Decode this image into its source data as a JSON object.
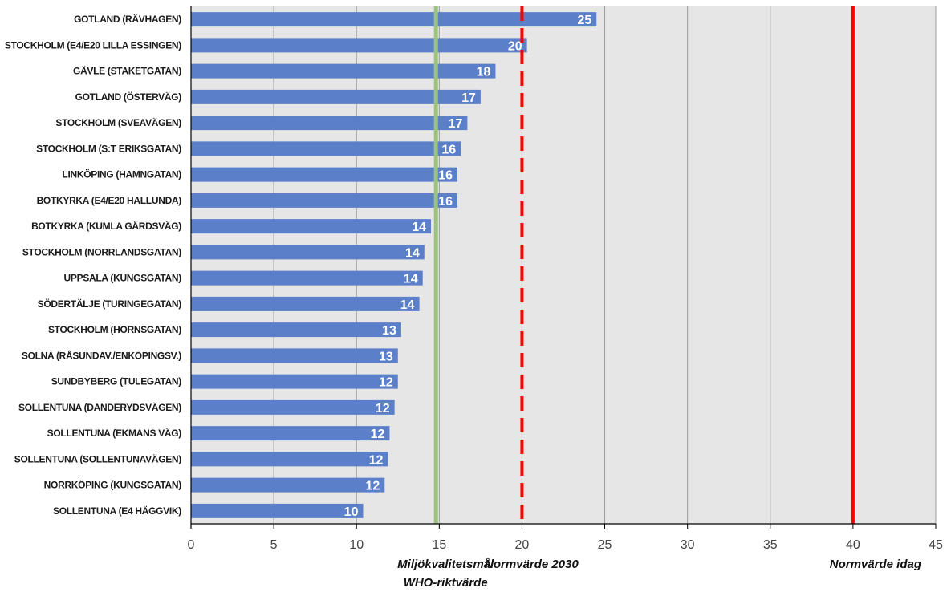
{
  "chart_data": {
    "type": "bar",
    "orientation": "horizontal",
    "categories": [
      "GOTLAND (RÄVHAGEN)",
      "STOCKHOLM (E4/E20 LILLA ESSINGEN)",
      "GÄVLE (STAKETGATAN)",
      "GOTLAND (ÖSTERVÄG)",
      "STOCKHOLM (SVEAVÄGEN)",
      "STOCKHOLM (S:T ERIKSGATAN)",
      "LINKÖPING (HAMNGATAN)",
      "BOTKYRKA (E4/E20 HALLUNDA)",
      "BOTKYRKA (KUMLA GÅRDSVÄG)",
      "STOCKHOLM (NORRLANDSGATAN)",
      "UPPSALA (KUNGSGATAN)",
      "SÖDERTÄLJE (TURINGEGATAN)",
      "STOCKHOLM (HORNSGATAN)",
      "SOLNA (RÅSUNDAV./ENKÖPINGSV.)",
      "SUNDBYBERG (TULEGATAN)",
      "SOLLENTUNA (DANDERYDSVÄGEN)",
      "SOLLENTUNA (EKMANS VÄG)",
      "SOLLENTUNA (SOLLENTUNAVÄGEN)",
      "NORRKÖPING (KUNGSGATAN)",
      "SOLLENTUNA (E4 HÄGGVIK)"
    ],
    "values": [
      24.5,
      20.3,
      18.4,
      17.5,
      16.7,
      16.3,
      16.1,
      16.1,
      14.5,
      14.1,
      14.0,
      13.8,
      12.7,
      12.5,
      12.5,
      12.3,
      12.0,
      11.9,
      11.7,
      10.4
    ],
    "data_labels": [
      "25",
      "20",
      "18",
      "17",
      "17",
      "16",
      "16",
      "16",
      "14",
      "14",
      "14",
      "14",
      "13",
      "13",
      "12",
      "12",
      "12",
      "12",
      "12",
      "10"
    ],
    "xlim": [
      0,
      45
    ],
    "x_ticks": [
      0,
      5,
      10,
      15,
      20,
      25,
      30,
      35,
      40,
      45
    ],
    "x_tick_labels": [
      "0",
      "5",
      "10",
      "15",
      "20",
      "25",
      "30",
      "35",
      "40",
      "45"
    ],
    "grid": true,
    "reference_lines": [
      {
        "value": 14.8,
        "style": "solid",
        "color": "#9bc37d",
        "label_lines": [
          "Miljökvalitetsmål",
          "WHO-riktvärde"
        ]
      },
      {
        "value": 20,
        "style": "dashed",
        "color": "#ff0000",
        "label_lines": [
          "Normvärde 2030"
        ]
      },
      {
        "value": 40,
        "style": "solid",
        "color": "#ff0000",
        "label_lines": [
          "Normvärde idag"
        ]
      }
    ],
    "colors": {
      "bar": "#5b80c9",
      "plot_background": "#e6e6e6",
      "grid": "#9a9a9a"
    }
  }
}
